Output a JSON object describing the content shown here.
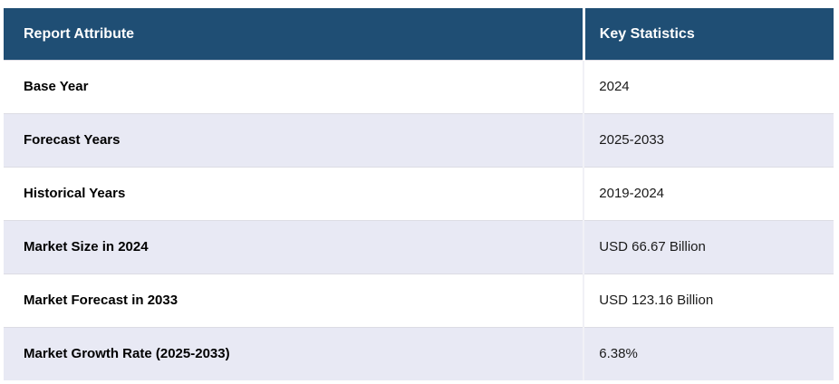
{
  "table": {
    "columns": [
      "Report Attribute",
      "Key Statistics"
    ],
    "rows": [
      {
        "attribute": "Base Year",
        "value": "2024"
      },
      {
        "attribute": "Forecast Years",
        "value": "2025-2033"
      },
      {
        "attribute": "Historical Years",
        "value": "2019-2024"
      },
      {
        "attribute": "Market Size in 2024",
        "value": "USD 66.67 Billion"
      },
      {
        "attribute": "Market Forecast in 2033",
        "value": "USD 123.16 Billion"
      },
      {
        "attribute": "Market Growth Rate (2025-2033)",
        "value": "6.38%"
      }
    ]
  },
  "colors": {
    "header_bg": "#1F4E74",
    "header_text": "#FFFFFF",
    "row_bg": "#FFFFFF",
    "row_alt_bg": "#E8E9F4",
    "row_divider": "#DCDCE4",
    "column_divider": "#FFFFFF",
    "body_text": "#000000"
  },
  "chart_data": {
    "type": "table",
    "title": "",
    "columns": [
      "Report Attribute",
      "Key Statistics"
    ],
    "rows": [
      [
        "Base Year",
        "2024"
      ],
      [
        "Forecast Years",
        "2025-2033"
      ],
      [
        "Historical Years",
        "2019-2024"
      ],
      [
        "Market Size in 2024",
        "USD 66.67 Billion"
      ],
      [
        "Market Forecast in 2033",
        "USD 123.16 Billion"
      ],
      [
        "Market Growth Rate (2025-2033)",
        "6.38%"
      ]
    ]
  }
}
